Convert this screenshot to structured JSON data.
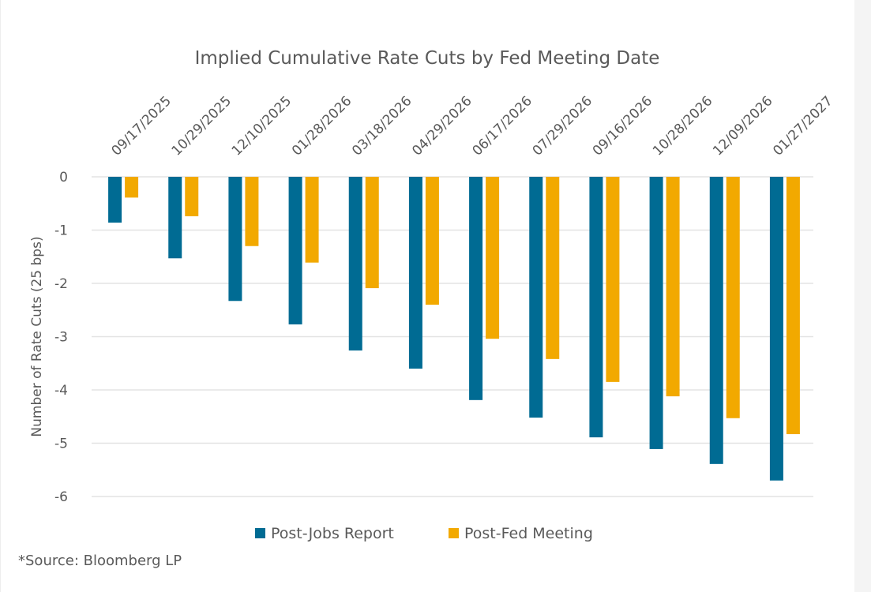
{
  "chart_data": {
    "type": "bar",
    "title": "Implied Cumulative Rate Cuts by Fed Meeting Date",
    "xlabel": "",
    "ylabel": "Number of Rate Cuts (25 bps)",
    "ylim": [
      -6,
      0
    ],
    "yticks": [
      0,
      -1,
      -2,
      -3,
      -4,
      -5,
      -6
    ],
    "ytick_labels": [
      "0",
      "-1",
      "-2",
      "-3",
      "-4",
      "-5",
      "-6"
    ],
    "grid": true,
    "x_axis_position": "top",
    "x_tick_rotation": "diagonal",
    "categories": [
      "09/17/2025",
      "10/29/2025",
      "12/10/2025",
      "01/28/2026",
      "03/18/2026",
      "04/29/2026",
      "06/17/2026",
      "07/29/2026",
      "09/16/2026",
      "10/28/2026",
      "12/09/2026",
      "01/27/2027"
    ],
    "series": [
      {
        "name": "Post-Jobs Report",
        "color": "#006b93",
        "values": [
          -0.86,
          -1.53,
          -2.33,
          -2.77,
          -3.26,
          -3.6,
          -4.19,
          -4.52,
          -4.89,
          -5.11,
          -5.39,
          -5.7
        ]
      },
      {
        "name": "Post-Fed Meeting",
        "color": "#f2a900",
        "values": [
          -0.39,
          -0.74,
          -1.3,
          -1.61,
          -2.09,
          -2.4,
          -3.04,
          -3.42,
          -3.85,
          -4.12,
          -4.53,
          -4.83
        ]
      }
    ],
    "legend_position": "bottom-center",
    "footnote": "*Source: Bloomberg LP"
  }
}
